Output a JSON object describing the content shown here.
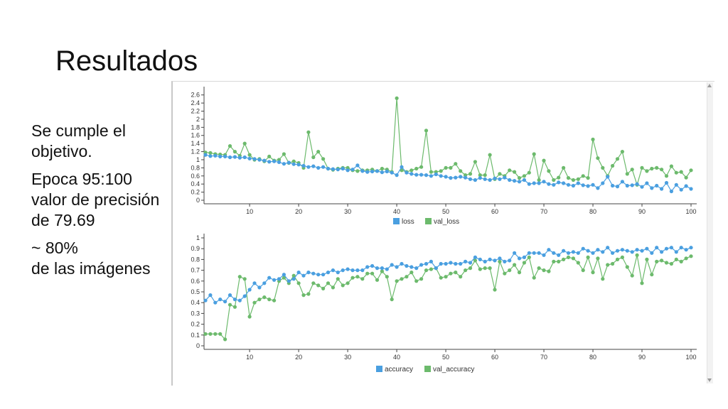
{
  "slide": {
    "title": "Resultados",
    "bullets": [
      "Se cumple el objetivo.",
      "Epoca 95:100 valor de precisión de 79.69",
      "~ 80%\nde las imágenes"
    ]
  },
  "colors": {
    "blue": "#4a9fe0",
    "green": "#6cba6c"
  },
  "chart_data": [
    {
      "type": "line",
      "x_ticks": [
        10,
        20,
        30,
        40,
        50,
        60,
        70,
        80,
        90,
        100
      ],
      "y_ticks": [
        "0",
        "0.2",
        "0.4",
        "0.6",
        "0.8",
        "1",
        "1.2",
        "1.4",
        "1.6",
        "1.8",
        "2",
        "2.2",
        "2.4",
        "2.6"
      ],
      "xlim": [
        1,
        100
      ],
      "ylim": [
        0,
        2.7
      ],
      "legend_position": "bottom",
      "series": [
        {
          "name": "loss",
          "color": "#4a9fe0",
          "values": [
            1.12,
            1.09,
            1.1,
            1.08,
            1.08,
            1.06,
            1.07,
            1.05,
            1.06,
            1.03,
            1.02,
            1.0,
            0.98,
            0.95,
            0.96,
            0.94,
            0.9,
            0.93,
            0.89,
            0.88,
            0.85,
            0.82,
            0.84,
            0.8,
            0.82,
            0.78,
            0.77,
            0.76,
            0.78,
            0.74,
            0.76,
            0.86,
            0.72,
            0.7,
            0.71,
            0.72,
            0.69,
            0.71,
            0.68,
            0.62,
            0.82,
            0.68,
            0.65,
            0.63,
            0.63,
            0.62,
            0.6,
            0.64,
            0.6,
            0.58,
            0.55,
            0.56,
            0.58,
            0.56,
            0.52,
            0.5,
            0.55,
            0.52,
            0.5,
            0.54,
            0.52,
            0.56,
            0.5,
            0.48,
            0.46,
            0.5,
            0.4,
            0.42,
            0.42,
            0.46,
            0.4,
            0.38,
            0.44,
            0.42,
            0.38,
            0.36,
            0.42,
            0.37,
            0.35,
            0.38,
            0.3,
            0.42,
            0.58,
            0.36,
            0.34,
            0.46,
            0.36,
            0.37,
            0.4,
            0.33,
            0.42,
            0.3,
            0.36,
            0.28,
            0.43,
            0.22,
            0.38,
            0.26,
            0.35,
            0.28
          ]
        },
        {
          "name": "val_loss",
          "color": "#6cba6c",
          "values": [
            1.18,
            1.17,
            1.14,
            1.13,
            1.12,
            1.34,
            1.2,
            1.1,
            1.4,
            1.12,
            1.0,
            1.02,
            0.96,
            1.08,
            0.98,
            1.0,
            1.14,
            0.92,
            0.96,
            0.92,
            0.8,
            1.68,
            1.06,
            1.2,
            1.02,
            0.78,
            0.75,
            0.78,
            0.8,
            0.8,
            0.74,
            0.72,
            0.74,
            0.74,
            0.76,
            0.72,
            0.78,
            0.76,
            0.7,
            2.52,
            0.74,
            0.7,
            0.74,
            0.78,
            0.82,
            1.72,
            0.7,
            0.7,
            0.72,
            0.8,
            0.8,
            0.9,
            0.72,
            0.62,
            0.65,
            0.95,
            0.62,
            0.62,
            1.12,
            0.52,
            0.65,
            0.6,
            0.74,
            0.7,
            0.55,
            0.6,
            0.68,
            1.14,
            0.5,
            0.98,
            0.72,
            0.5,
            0.56,
            0.8,
            0.55,
            0.5,
            0.52,
            0.6,
            0.55,
            1.5,
            1.04,
            0.8,
            0.6,
            0.85,
            1.02,
            1.2,
            0.65,
            0.76,
            0.38,
            0.8,
            0.72,
            0.78,
            0.8,
            0.76,
            0.6,
            0.84,
            0.68,
            0.7,
            0.56,
            0.74
          ]
        }
      ]
    },
    {
      "type": "line",
      "x_ticks": [
        10,
        20,
        30,
        40,
        50,
        60,
        70,
        80,
        90,
        100
      ],
      "y_ticks": [
        "0",
        "0.1",
        "0.2",
        "0.3",
        "0.4",
        "0.5",
        "0.6",
        "0.7",
        "0.8",
        "0.9",
        "1"
      ],
      "xlim": [
        1,
        100
      ],
      "ylim": [
        0,
        1.0
      ],
      "legend_position": "bottom",
      "series": [
        {
          "name": "accuracy",
          "color": "#4a9fe0",
          "values": [
            0.42,
            0.47,
            0.4,
            0.43,
            0.41,
            0.47,
            0.43,
            0.42,
            0.46,
            0.52,
            0.58,
            0.54,
            0.58,
            0.63,
            0.61,
            0.62,
            0.66,
            0.6,
            0.62,
            0.68,
            0.65,
            0.68,
            0.67,
            0.66,
            0.66,
            0.68,
            0.7,
            0.68,
            0.7,
            0.71,
            0.7,
            0.7,
            0.7,
            0.73,
            0.74,
            0.72,
            0.72,
            0.71,
            0.75,
            0.73,
            0.76,
            0.74,
            0.73,
            0.72,
            0.75,
            0.76,
            0.78,
            0.72,
            0.76,
            0.76,
            0.77,
            0.76,
            0.76,
            0.78,
            0.77,
            0.82,
            0.8,
            0.78,
            0.8,
            0.79,
            0.81,
            0.78,
            0.79,
            0.86,
            0.81,
            0.82,
            0.86,
            0.86,
            0.86,
            0.84,
            0.89,
            0.86,
            0.84,
            0.88,
            0.86,
            0.87,
            0.86,
            0.9,
            0.88,
            0.86,
            0.89,
            0.87,
            0.91,
            0.86,
            0.88,
            0.89,
            0.88,
            0.87,
            0.89,
            0.88,
            0.9,
            0.86,
            0.91,
            0.87,
            0.9,
            0.91,
            0.87,
            0.91,
            0.89,
            0.91
          ]
        },
        {
          "name": "val_accuracy",
          "color": "#6cba6c",
          "values": [
            0.11,
            0.11,
            0.11,
            0.11,
            0.06,
            0.38,
            0.36,
            0.64,
            0.62,
            0.27,
            0.4,
            0.43,
            0.45,
            0.43,
            0.42,
            0.6,
            0.63,
            0.58,
            0.65,
            0.58,
            0.47,
            0.48,
            0.58,
            0.56,
            0.53,
            0.58,
            0.54,
            0.62,
            0.56,
            0.58,
            0.63,
            0.64,
            0.62,
            0.67,
            0.67,
            0.61,
            0.69,
            0.64,
            0.43,
            0.6,
            0.62,
            0.64,
            0.68,
            0.6,
            0.62,
            0.7,
            0.71,
            0.72,
            0.63,
            0.64,
            0.67,
            0.68,
            0.64,
            0.7,
            0.72,
            0.79,
            0.71,
            0.72,
            0.72,
            0.52,
            0.78,
            0.67,
            0.7,
            0.75,
            0.68,
            0.77,
            0.82,
            0.63,
            0.72,
            0.7,
            0.69,
            0.78,
            0.78,
            0.8,
            0.82,
            0.81,
            0.77,
            0.7,
            0.82,
            0.68,
            0.81,
            0.62,
            0.75,
            0.76,
            0.8,
            0.82,
            0.73,
            0.65,
            0.84,
            0.58,
            0.8,
            0.66,
            0.78,
            0.79,
            0.77,
            0.76,
            0.8,
            0.78,
            0.81,
            0.83
          ]
        }
      ]
    }
  ]
}
